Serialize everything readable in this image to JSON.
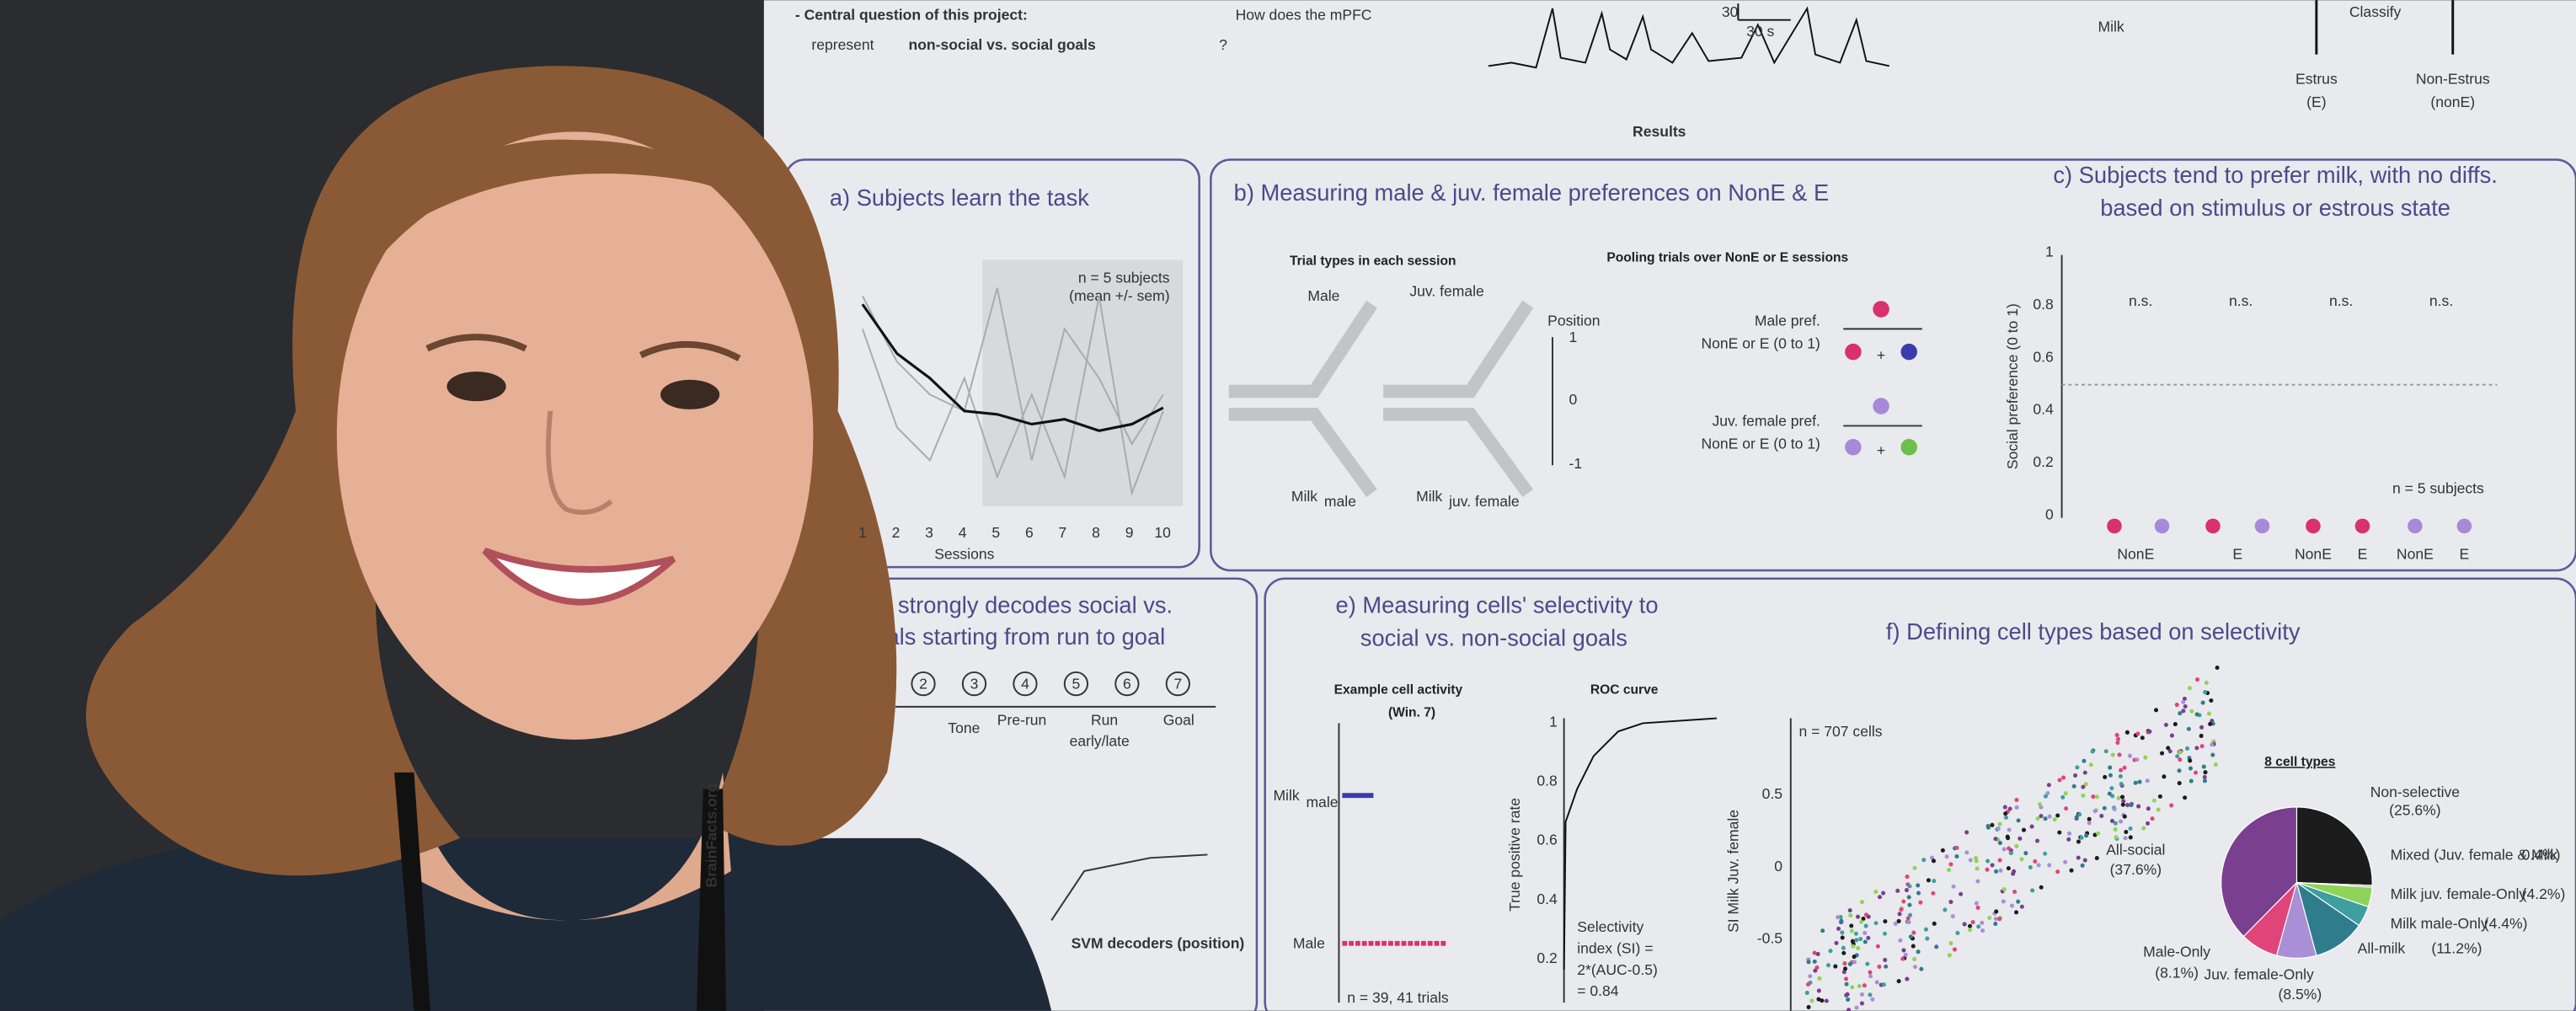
{
  "intro": {
    "lead": "- Central question of this project:",
    "rest": "How does the mPFC",
    "line2_pre": "represent",
    "line2_emph": "non-social vs. social goals",
    "line2_end": "?"
  },
  "trace_scale": {
    "y": "30",
    "x": "30 s"
  },
  "top_right": {
    "milk": "Milk",
    "classify": "Classify",
    "estrus": [
      "Estrus",
      "(E)"
    ],
    "non_estrus": [
      "Non-Estrus",
      "(nonE)"
    ]
  },
  "results_title": "Results",
  "panel_a": {
    "title": "a) Subjects learn the task",
    "note": [
      "n = 5 subjects",
      "(mean +/- sem)"
    ],
    "x_ticks": [
      "1",
      "2",
      "3",
      "4",
      "5",
      "6",
      "7",
      "8",
      "9",
      "10"
    ],
    "x_label": "Sessions"
  },
  "panel_b": {
    "title": "b) Measuring male & juv. female preferences on NonE & E",
    "left_heading": "Trial types in each session",
    "right_heading": "Pooling trials over NonE or E sessions",
    "male": "Male",
    "juv_female": "Juv. female",
    "position": "Position",
    "position_ticks": [
      "1",
      "0",
      "-1"
    ],
    "milk_male": "Milk",
    "milk_male_sub": "male",
    "milk_juv": "Milk",
    "milk_juv_sub": "juv. female",
    "male_pref": [
      "Male pref.",
      "NonE or E (0 to 1)"
    ],
    "juv_pref": [
      "Juv. female pref.",
      "NonE or E (0 to 1)"
    ],
    "plus": "+"
  },
  "panel_c": {
    "title": [
      "c) Subjects tend to prefer milk, with no diffs.",
      "based on stimulus or estrous state"
    ],
    "y_label": "Social preference (0 to 1)",
    "y_ticks": [
      "0",
      "0.2",
      "0.4",
      "0.6",
      "0.8",
      "1"
    ],
    "ns": [
      "n.s.",
      "n.s.",
      "n.s.",
      "n.s."
    ],
    "n": "n = 5 subjects",
    "x_labels": [
      "NonE",
      "E",
      "NonE",
      "E",
      "NonE",
      "E"
    ]
  },
  "panel_d": {
    "title": [
      "sition strongly decodes social vs.",
      "trials starting from run to goal"
    ],
    "steps": [
      "2",
      "3",
      "4",
      "5",
      "6",
      "7"
    ],
    "stages": [
      "Tone",
      "Pre-run",
      "Run",
      "Goal"
    ],
    "stage_sub": "early/late",
    "svm": "SVM decoders (position)"
  },
  "panel_e": {
    "title": [
      "e) Measuring cells' selectivity to",
      "social vs. non-social goals"
    ],
    "example": [
      "Example cell activity",
      "(Win. 7)"
    ],
    "roc": "ROC curve",
    "milk": "Milk",
    "milk_sub": "male",
    "male": "Male",
    "n": "n = 39, 41 trials",
    "y_label": "True positive rate",
    "y_ticks": [
      "1",
      "0.8",
      "0.6",
      "0.4",
      "0.2"
    ],
    "si": [
      "Selectivity",
      "index (SI) =",
      "2*(AUC-0.5)",
      "= 0.84"
    ]
  },
  "panel_f": {
    "title": "f) Defining cell types based on selectivity",
    "n": "n = 707 cells",
    "y_label": "SI Milk Juv. female",
    "y_ticks": [
      "0.5",
      "0",
      "-0.5"
    ],
    "legend_title": "8 cell types",
    "pie": {
      "names": [
        "Non-selective",
        "Mixed (Juv. female & Milk",
        "Milk juv. female-Only",
        "Milk male-Only",
        "All-milk",
        "Juv. female-Only",
        "Male-Only",
        "All-social"
      ],
      "values": [
        25.6,
        0.4,
        4.2,
        4.4,
        11.2,
        8.5,
        8.1,
        37.6
      ],
      "value_labels": [
        "(25.6%)",
        "0.4%)",
        "(4.2%)",
        "(4.4%)",
        "(11.2%)",
        "(8.5%)",
        "(8.1%)",
        "(37.6%)"
      ],
      "colors": [
        "#1c1c1c",
        "#9a9a9a",
        "#8fd45a",
        "#3e9ea0",
        "#2f7d8c",
        "#a98fd6",
        "#e0457a",
        "#7b3f8f"
      ]
    }
  },
  "lanyard": "BrainFacts.org"
}
